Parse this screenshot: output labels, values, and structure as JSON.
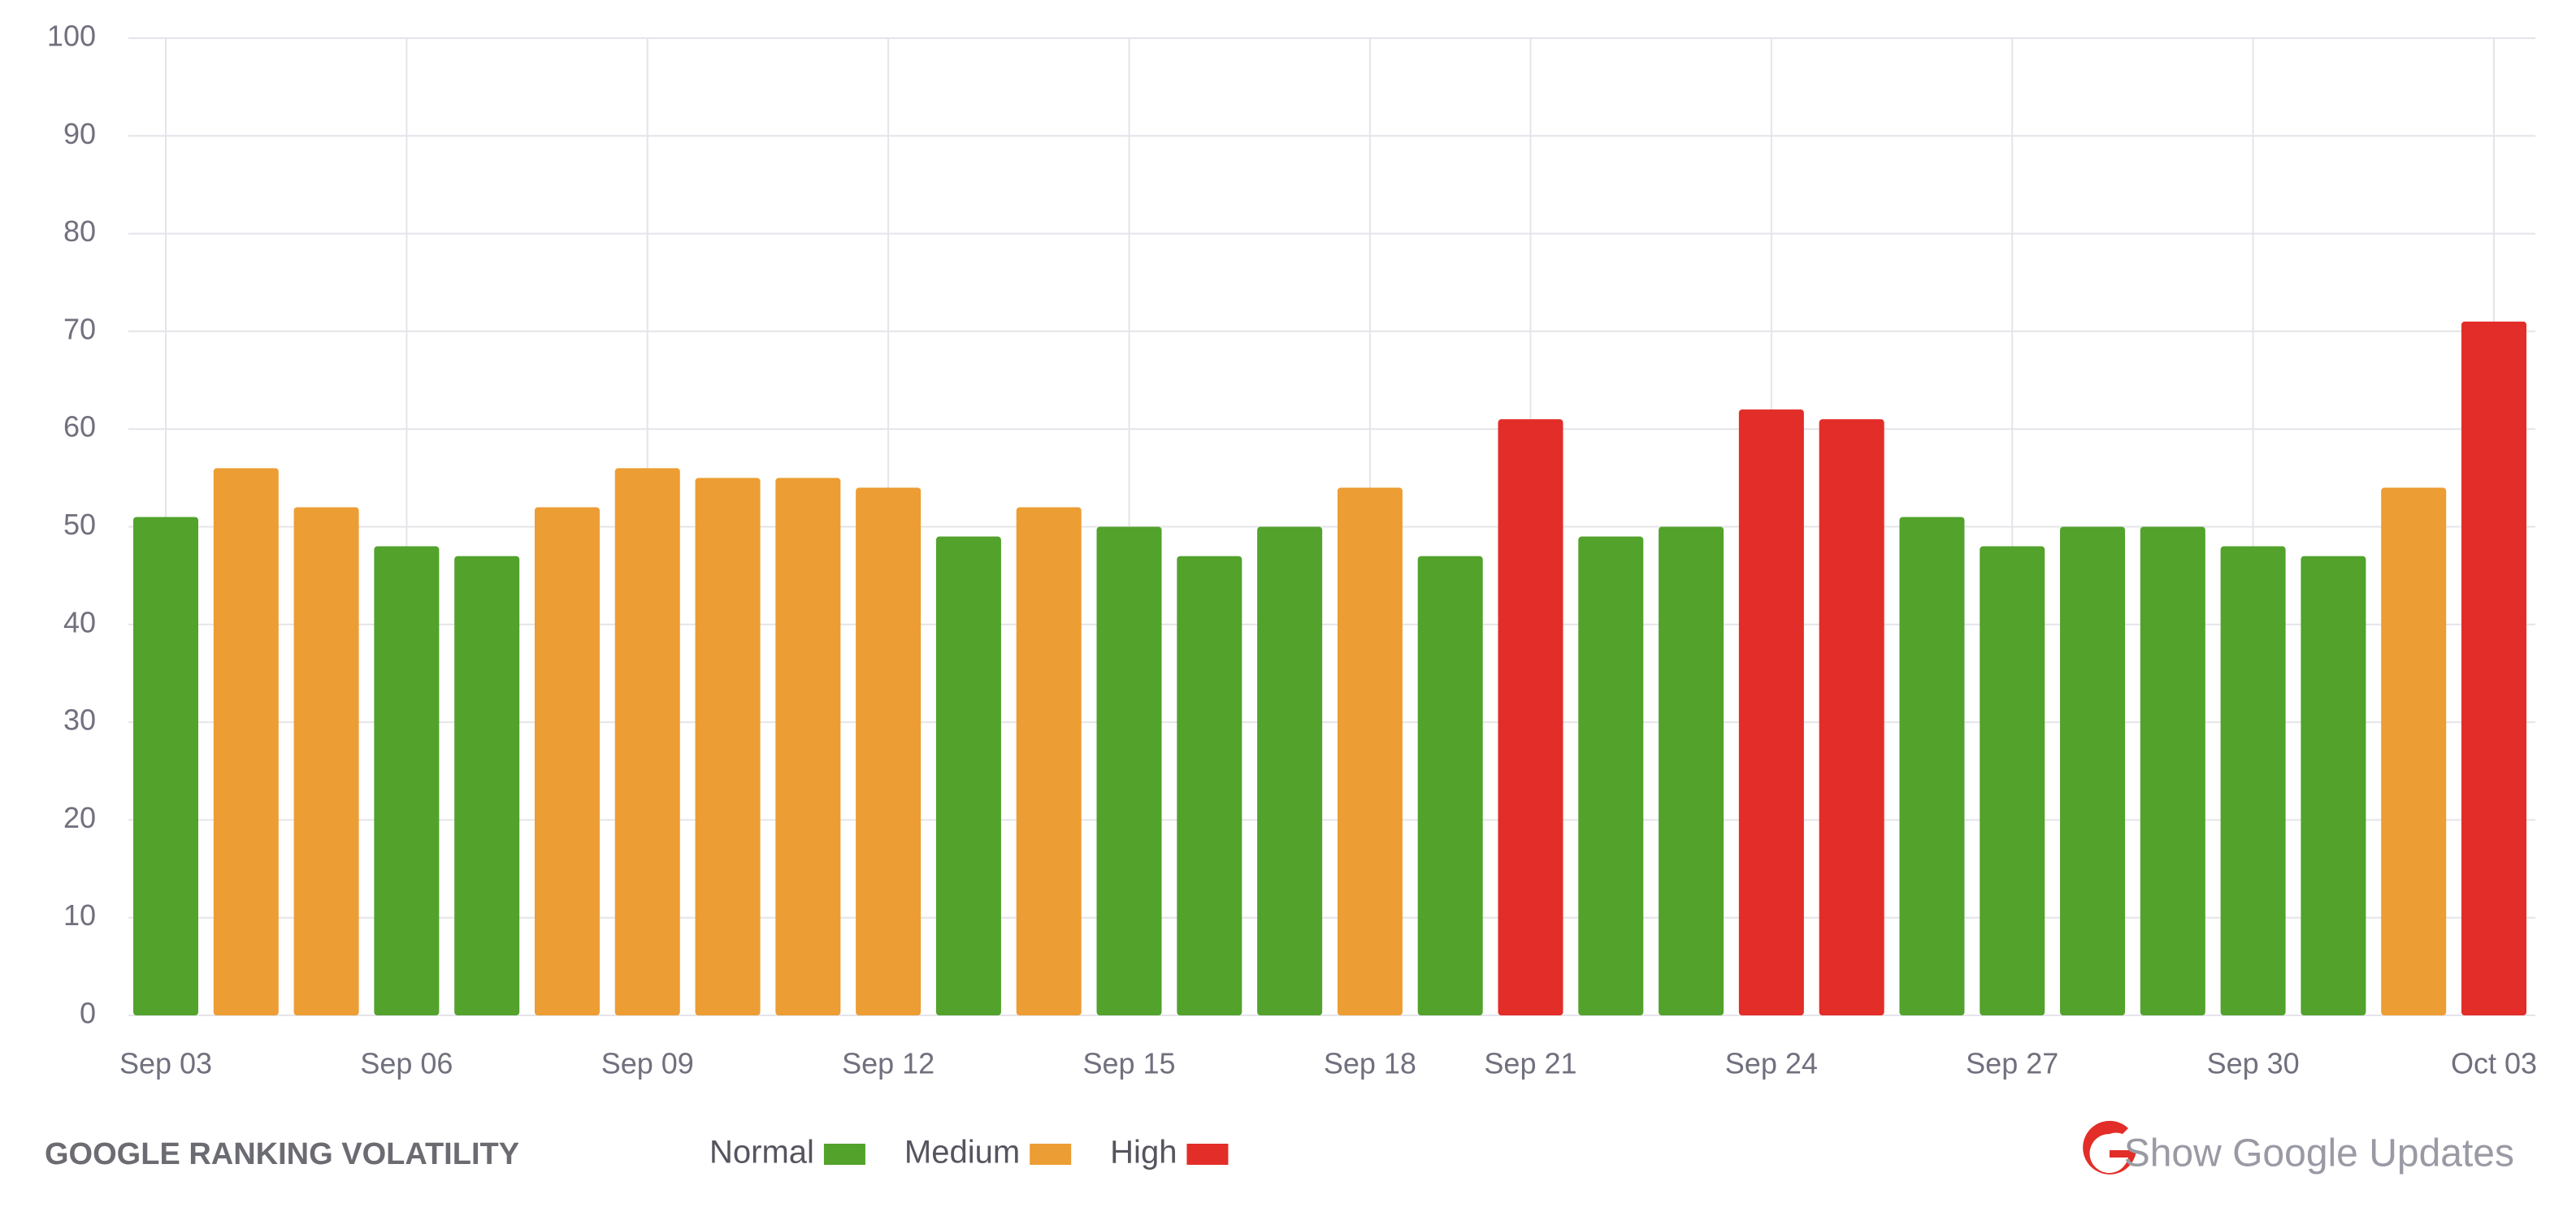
{
  "chart_data": {
    "type": "bar",
    "title": "GOOGLE RANKING VOLATILITY",
    "link_text": "Show Google Updates",
    "categories": [
      "Sep 03",
      null,
      null,
      "Sep 06",
      null,
      null,
      "Sep 09",
      null,
      null,
      "Sep 12",
      null,
      null,
      "Sep 15",
      null,
      null,
      "Sep 18",
      null,
      "Sep 21",
      null,
      null,
      "Sep 24",
      null,
      null,
      "Sep 27",
      null,
      null,
      "Sep 30",
      null,
      null,
      "Oct 03"
    ],
    "values": [
      51,
      56,
      52,
      48,
      47,
      52,
      56,
      55,
      55,
      54,
      49,
      52,
      50,
      47,
      50,
      54,
      47,
      61,
      49,
      50,
      62,
      61,
      51,
      48,
      50,
      50,
      48,
      47,
      54,
      71
    ],
    "colors": [
      "#52a22c",
      "#ec9d33",
      "#ec9d33",
      "#52a22c",
      "#52a22c",
      "#ec9d33",
      "#ec9d33",
      "#ec9d33",
      "#ec9d33",
      "#ec9d33",
      "#52a22c",
      "#ec9d33",
      "#52a22c",
      "#52a22c",
      "#52a22c",
      "#ec9d33",
      "#52a22c",
      "#e32d28",
      "#52a22c",
      "#52a22c",
      "#e32d28",
      "#e32d28",
      "#52a22c",
      "#52a22c",
      "#52a22c",
      "#52a22c",
      "#52a22c",
      "#52a22c",
      "#ec9d33",
      "#e32d28"
    ],
    "legend": [
      {
        "name": "Normal",
        "color": "#52a22c"
      },
      {
        "name": "Medium",
        "color": "#ec9d33"
      },
      {
        "name": "High",
        "color": "#e32d28"
      }
    ],
    "ylim": [
      0,
      100
    ],
    "yticks": [
      0,
      10,
      20,
      30,
      40,
      50,
      60,
      70,
      80,
      90,
      100
    ],
    "grid": true
  }
}
